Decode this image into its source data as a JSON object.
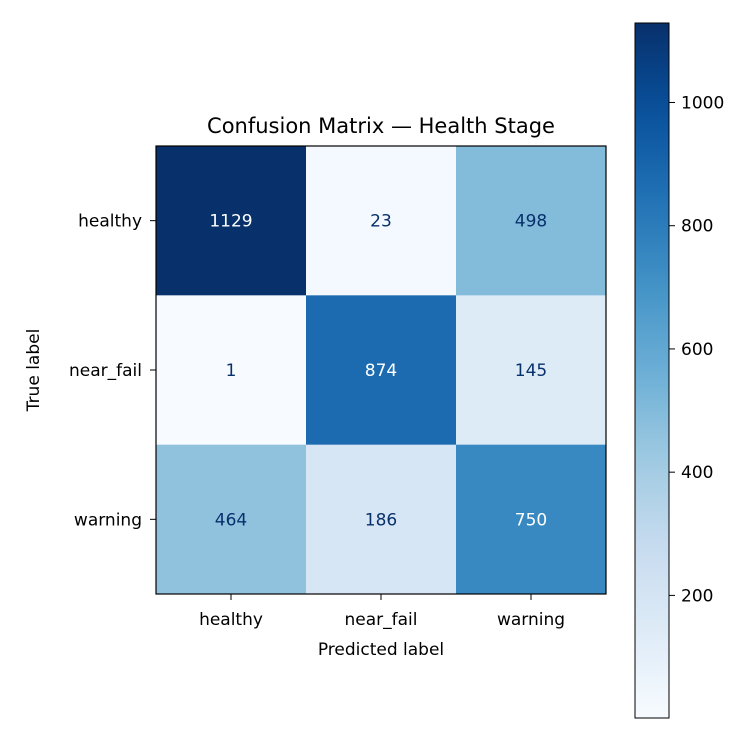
{
  "chart_data": {
    "type": "heatmap",
    "title": "Confusion Matrix — Health Stage",
    "xlabel": "Predicted label",
    "ylabel": "True label",
    "x_categories": [
      "healthy",
      "near_fail",
      "warning"
    ],
    "y_categories": [
      "healthy",
      "near_fail",
      "warning"
    ],
    "matrix": [
      [
        1129,
        23,
        498
      ],
      [
        1,
        874,
        145
      ],
      [
        464,
        186,
        750
      ]
    ],
    "colormap": "Blues",
    "colorbar": {
      "min": 1,
      "max": 1129,
      "ticks": [
        200,
        400,
        600,
        800,
        1000
      ]
    },
    "colors": {
      "text_dark": "#08306b",
      "text_light": "#ffffff"
    }
  }
}
